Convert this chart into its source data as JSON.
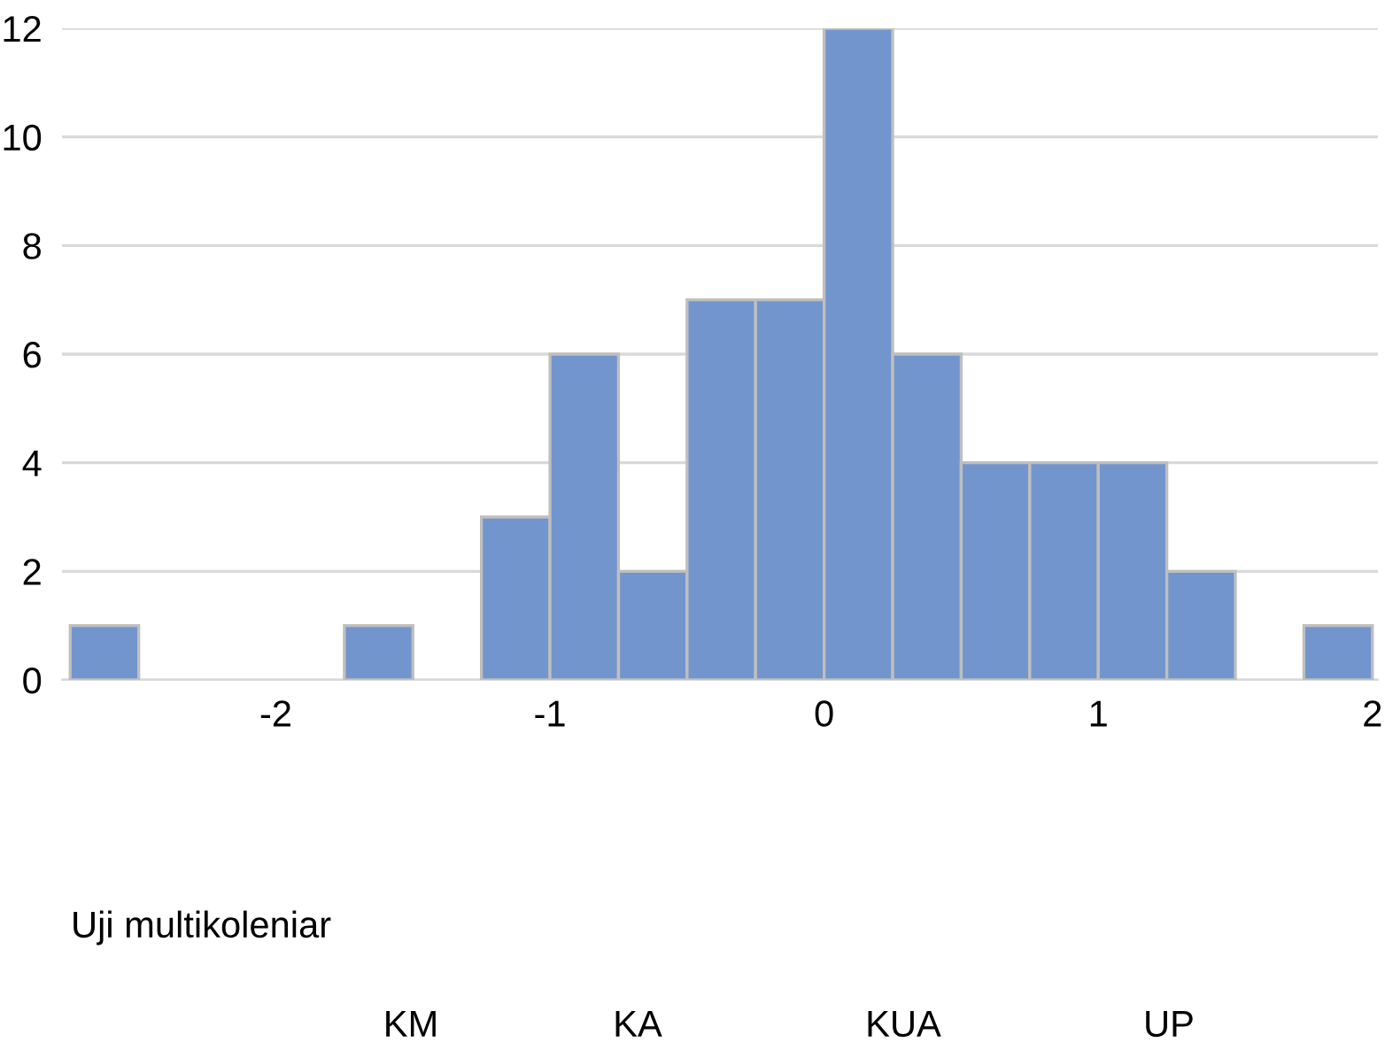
{
  "chart_data": {
    "type": "histogram",
    "bins": [
      -2.75,
      -2.5,
      -2.25,
      -2.0,
      -1.75,
      -1.5,
      -1.25,
      -1.0,
      -0.75,
      -0.5,
      -0.25,
      0.0,
      0.25,
      0.5,
      0.75,
      1.0,
      1.25,
      1.5,
      1.75,
      2.0
    ],
    "values": [
      1,
      0,
      0,
      0,
      1,
      0,
      3,
      6,
      2,
      7,
      7,
      12,
      6,
      4,
      4,
      4,
      2,
      0,
      1
    ],
    "color": "#7295cd",
    "xlim": [
      -2.78,
      2.02
    ],
    "ylim": [
      0,
      12
    ],
    "xticks": [
      -2,
      -1,
      0,
      1,
      2
    ],
    "yticks": [
      0,
      2,
      4,
      6,
      8,
      10,
      12
    ],
    "grid": "y",
    "annotations": [
      "Uji multikoleniar",
      "KM",
      "KA",
      "KUA",
      "UP"
    ]
  }
}
